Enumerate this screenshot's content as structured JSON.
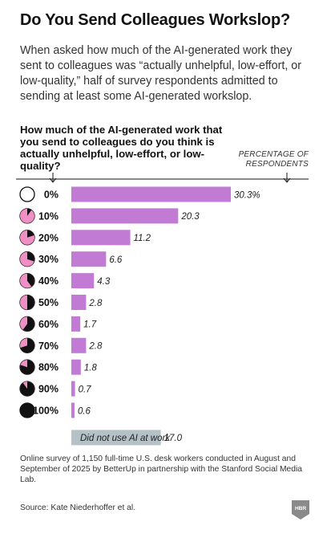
{
  "title": "Do You Send Colleagues Workslop?",
  "intro": "When asked how much of the AI-generated work they sent to colleagues was “actually unhelpful, low-effort, or low-quality,” half of survey respondents admitted to sending at least some AI-generated workslop.",
  "colors": {
    "bar": "#c17bd4",
    "other_bar": "#b4c2c8",
    "pie_fill": "#f08fc4",
    "pie_stroke": "#111111"
  },
  "chart_data": {
    "type": "bar",
    "orientation": "horizontal",
    "title": "How much of the AI-generated work that you send to colleagues do you think is actually unhelpful, low-effort, or low-quality?",
    "value_axis_label": "PERCENTAGE OF RESPONDENTS",
    "categories": [
      "0%",
      "10%",
      "20%",
      "30%",
      "40%",
      "50%",
      "60%",
      "70%",
      "80%",
      "90%",
      "100%"
    ],
    "values": [
      30.3,
      20.3,
      11.2,
      6.6,
      4.3,
      2.8,
      1.7,
      2.8,
      1.8,
      0.7,
      0.6
    ],
    "value_labels": [
      "30.3%",
      "20.3",
      "11.2",
      "6.6",
      "4.3",
      "2.8",
      "1.7",
      "2.8",
      "1.8",
      "0.7",
      "0.6"
    ],
    "pie_fractions": [
      0,
      0.1,
      0.2,
      0.3,
      0.4,
      0.5,
      0.6,
      0.7,
      0.8,
      0.9,
      1.0
    ],
    "extra_bar": {
      "label": "Did not use AI at work",
      "value": 17.0,
      "value_label": "17.0"
    },
    "xlim": [
      0,
      30.3
    ],
    "grid": false,
    "legend": "none"
  },
  "note": "Online survey of 1,150 full-time U.S. desk workers conducted in August and September of 2025 by BetterUp in partnership with the Stanford Social Media Lab.",
  "source": "Source: Kate Niederhoffer et al.",
  "logo_text": "HBR"
}
